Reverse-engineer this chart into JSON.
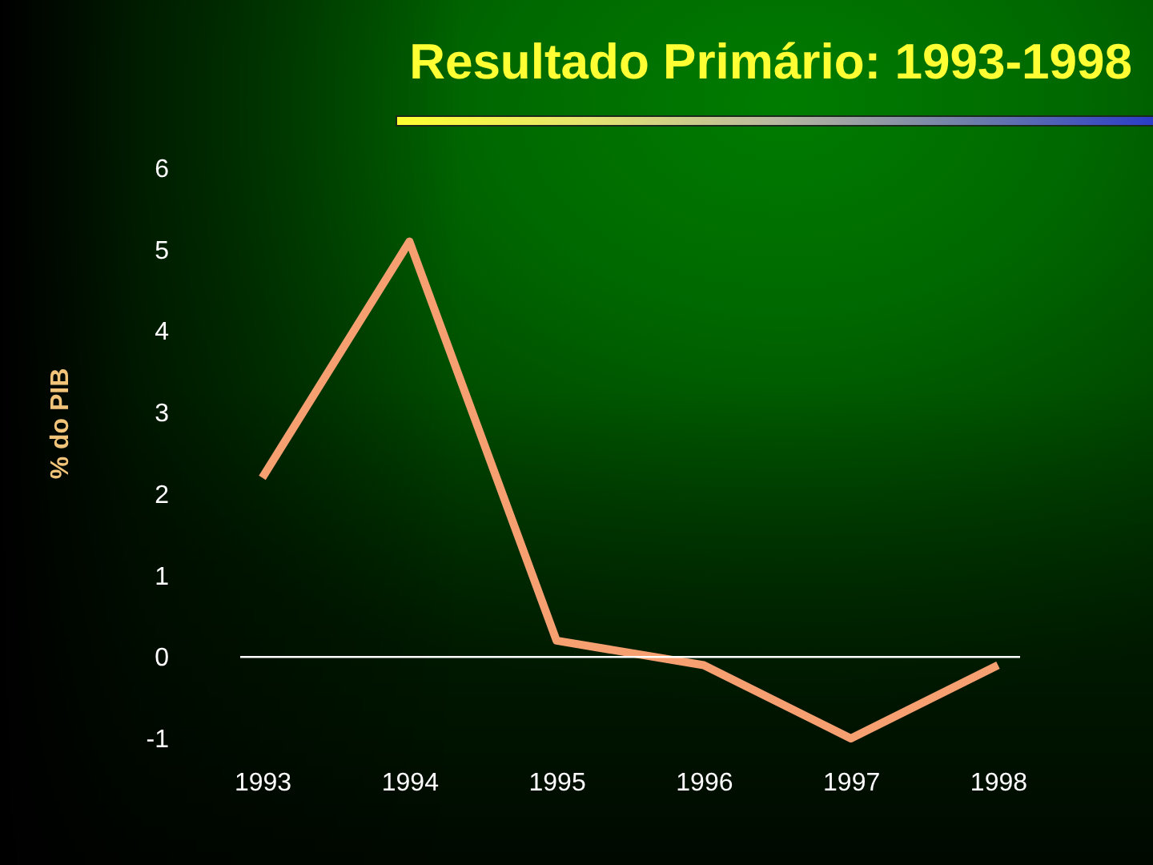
{
  "chart_data": {
    "type": "line",
    "title": "Resultado Primário: 1993-1998",
    "ylabel": "% do PIB",
    "categories": [
      "1993",
      "1994",
      "1995",
      "1996",
      "1997",
      "1998"
    ],
    "series": [
      {
        "color": "#f6a072",
        "values": [
          2.2,
          5.1,
          0.2,
          -0.1,
          -1.0,
          -0.1
        ]
      }
    ],
    "ylim": [
      -1,
      6
    ],
    "yticks": [
      -1,
      0,
      1,
      2,
      3,
      4,
      5,
      6
    ],
    "line_style": "solid",
    "ref_lines": [
      {
        "axis": "y",
        "value": 0,
        "color": "#ffffff"
      }
    ]
  }
}
